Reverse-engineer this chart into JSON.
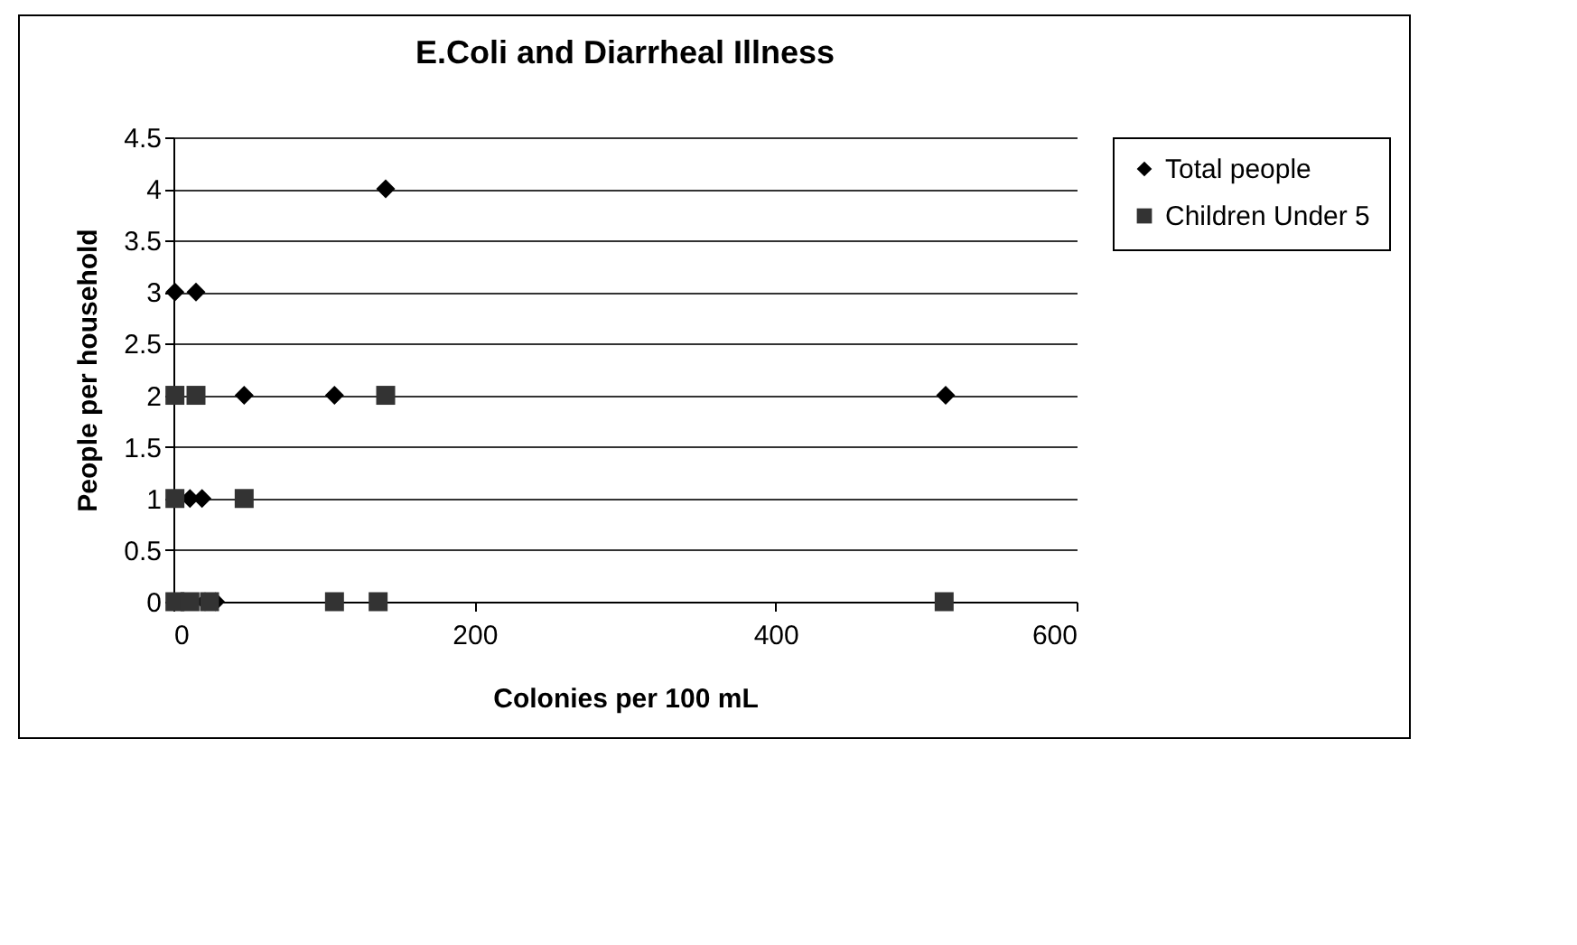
{
  "chart_data": {
    "type": "scatter",
    "title": "E.Coli and Diarrheal Illness",
    "xlabel": "Colonies per 100 mL",
    "ylabel": "People per household",
    "xlim": [
      0,
      600
    ],
    "xticks": [
      0,
      200,
      400,
      600
    ],
    "ylim": [
      0,
      4.5
    ],
    "yticks": [
      0,
      0.5,
      1,
      1.5,
      2,
      2.5,
      3,
      3.5,
      4,
      4.5
    ],
    "grid": "y",
    "legend": "right",
    "series": [
      {
        "name": "Total people",
        "color": "#000000",
        "marker": "diamond",
        "x": [
          1,
          15,
          141,
          47,
          107,
          513,
          11,
          19,
          21,
          28
        ],
        "values": [
          3,
          3,
          4,
          2,
          2,
          2,
          1,
          1,
          0,
          0
        ]
      },
      {
        "name": "Children Under 5",
        "color": "#333333",
        "marker": "square",
        "x": [
          1,
          15,
          141,
          1,
          47,
          1,
          11,
          24,
          107,
          136,
          512
        ],
        "values": [
          2,
          2,
          2,
          1,
          1,
          0,
          0,
          0,
          0,
          0,
          0
        ]
      }
    ]
  }
}
